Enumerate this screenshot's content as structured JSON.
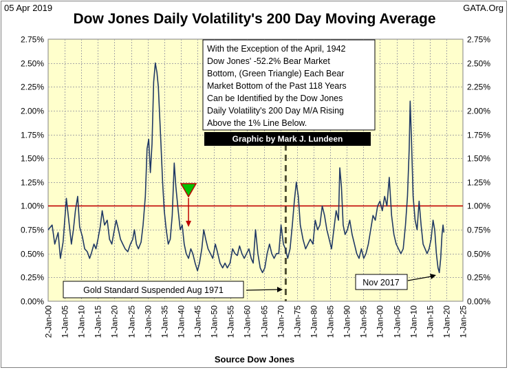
{
  "header": {
    "date": "05 Apr 2019",
    "source": "GATA.Org"
  },
  "chart_data": {
    "type": "line",
    "title": "Dow Jones Daily Volatility's 200 Day Moving Average",
    "xlabel": "Source Dow Jones",
    "ylabel": "",
    "ylim": [
      0,
      0.0275
    ],
    "xlim": [
      "1900-01-02",
      "2025-01-01"
    ],
    "y_ticks": [
      "0.00%",
      "0.25%",
      "0.50%",
      "0.75%",
      "1.00%",
      "1.25%",
      "1.50%",
      "1.75%",
      "2.00%",
      "2.25%",
      "2.50%",
      "2.75%"
    ],
    "x_ticks": [
      "2-Jan-00",
      "1-Jan-05",
      "1-Jan-10",
      "1-Jan-15",
      "1-Jan-20",
      "1-Jan-25",
      "1-Jan-30",
      "1-Jan-35",
      "1-Jan-40",
      "1-Jan-45",
      "1-Jan-50",
      "1-Jan-55",
      "1-Jan-60",
      "1-Jan-65",
      "1-Jan-70",
      "1-Jan-75",
      "1-Jan-80",
      "1-Jan-85",
      "1-Jan-90",
      "1-Jan-95",
      "1-Jan-00",
      "1-Jan-05",
      "1-Jan-10",
      "1-Jan-15",
      "1-Jan-20",
      "1-Jan-25"
    ],
    "grid": true,
    "plot_background": "#ffffcc",
    "line_color": "#1f3864",
    "reference_line": {
      "y": 0.01,
      "color": "#c00000"
    },
    "vertical_marker": {
      "x": 1971.6,
      "style": "dashed",
      "color": "#4d4d33"
    },
    "series": [
      {
        "name": "",
        "points": [
          [
            1900.0,
            0.0075
          ],
          [
            1901.2,
            0.008
          ],
          [
            1902.0,
            0.006
          ],
          [
            1903.0,
            0.0072
          ],
          [
            1903.7,
            0.0045
          ],
          [
            1904.5,
            0.0062
          ],
          [
            1905.0,
            0.0085
          ],
          [
            1905.5,
            0.0108
          ],
          [
            1906.3,
            0.0082
          ],
          [
            1907.0,
            0.006
          ],
          [
            1907.6,
            0.0075
          ],
          [
            1908.2,
            0.0095
          ],
          [
            1908.9,
            0.011
          ],
          [
            1909.5,
            0.0078
          ],
          [
            1910.3,
            0.0068
          ],
          [
            1911.0,
            0.0055
          ],
          [
            1911.8,
            0.0052
          ],
          [
            1912.5,
            0.0045
          ],
          [
            1913.0,
            0.005
          ],
          [
            1913.8,
            0.006
          ],
          [
            1914.4,
            0.0055
          ],
          [
            1915.0,
            0.0065
          ],
          [
            1915.7,
            0.0078
          ],
          [
            1916.3,
            0.0095
          ],
          [
            1917.0,
            0.008
          ],
          [
            1917.8,
            0.0085
          ],
          [
            1918.5,
            0.0065
          ],
          [
            1919.2,
            0.006
          ],
          [
            1919.8,
            0.0072
          ],
          [
            1920.5,
            0.0085
          ],
          [
            1921.0,
            0.0078
          ],
          [
            1921.8,
            0.0065
          ],
          [
            1922.5,
            0.006
          ],
          [
            1923.2,
            0.0055
          ],
          [
            1924.0,
            0.0052
          ],
          [
            1924.8,
            0.006
          ],
          [
            1925.5,
            0.0065
          ],
          [
            1926.0,
            0.0075
          ],
          [
            1926.6,
            0.006
          ],
          [
            1927.2,
            0.0055
          ],
          [
            1928.0,
            0.0062
          ],
          [
            1928.6,
            0.008
          ],
          [
            1929.3,
            0.011
          ],
          [
            1929.8,
            0.016
          ],
          [
            1930.3,
            0.017
          ],
          [
            1930.8,
            0.0135
          ],
          [
            1931.3,
            0.0165
          ],
          [
            1931.8,
            0.023
          ],
          [
            1932.3,
            0.025
          ],
          [
            1932.8,
            0.024
          ],
          [
            1933.2,
            0.0225
          ],
          [
            1933.6,
            0.0195
          ],
          [
            1934.0,
            0.0165
          ],
          [
            1934.5,
            0.0125
          ],
          [
            1935.0,
            0.0095
          ],
          [
            1935.6,
            0.0075
          ],
          [
            1936.2,
            0.006
          ],
          [
            1936.8,
            0.0065
          ],
          [
            1937.4,
            0.009
          ],
          [
            1938.0,
            0.0145
          ],
          [
            1938.5,
            0.012
          ],
          [
            1939.2,
            0.0095
          ],
          [
            1939.8,
            0.0075
          ],
          [
            1940.4,
            0.008
          ],
          [
            1941.0,
            0.006
          ],
          [
            1941.6,
            0.005
          ],
          [
            1942.3,
            0.0045
          ],
          [
            1943.0,
            0.0055
          ],
          [
            1943.6,
            0.005
          ],
          [
            1944.3,
            0.004
          ],
          [
            1945.0,
            0.0032
          ],
          [
            1945.6,
            0.004
          ],
          [
            1946.3,
            0.0055
          ],
          [
            1946.9,
            0.0075
          ],
          [
            1947.5,
            0.0065
          ],
          [
            1948.2,
            0.0055
          ],
          [
            1948.9,
            0.005
          ],
          [
            1949.6,
            0.0045
          ],
          [
            1950.4,
            0.006
          ],
          [
            1951.0,
            0.0052
          ],
          [
            1951.8,
            0.004
          ],
          [
            1952.6,
            0.0035
          ],
          [
            1953.3,
            0.004
          ],
          [
            1954.0,
            0.0035
          ],
          [
            1954.8,
            0.004
          ],
          [
            1955.6,
            0.0055
          ],
          [
            1956.3,
            0.005
          ],
          [
            1957.0,
            0.0048
          ],
          [
            1957.7,
            0.0058
          ],
          [
            1958.4,
            0.005
          ],
          [
            1959.1,
            0.0045
          ],
          [
            1959.8,
            0.005
          ],
          [
            1960.5,
            0.0055
          ],
          [
            1961.2,
            0.0045
          ],
          [
            1961.8,
            0.004
          ],
          [
            1962.5,
            0.0075
          ],
          [
            1963.2,
            0.005
          ],
          [
            1963.9,
            0.0035
          ],
          [
            1964.6,
            0.003
          ],
          [
            1965.3,
            0.0035
          ],
          [
            1966.0,
            0.005
          ],
          [
            1966.7,
            0.006
          ],
          [
            1967.4,
            0.005
          ],
          [
            1968.1,
            0.0045
          ],
          [
            1968.8,
            0.005
          ],
          [
            1969.5,
            0.005
          ],
          [
            1970.2,
            0.008
          ],
          [
            1970.9,
            0.006
          ],
          [
            1971.5,
            0.0055
          ],
          [
            1972.2,
            0.0045
          ],
          [
            1972.9,
            0.0055
          ],
          [
            1973.6,
            0.008
          ],
          [
            1974.2,
            0.0105
          ],
          [
            1974.8,
            0.0125
          ],
          [
            1975.4,
            0.011
          ],
          [
            1976.0,
            0.008
          ],
          [
            1976.8,
            0.0065
          ],
          [
            1977.6,
            0.0055
          ],
          [
            1978.3,
            0.006
          ],
          [
            1979.0,
            0.0065
          ],
          [
            1979.8,
            0.006
          ],
          [
            1980.5,
            0.0085
          ],
          [
            1981.2,
            0.0075
          ],
          [
            1981.9,
            0.008
          ],
          [
            1982.6,
            0.01
          ],
          [
            1983.3,
            0.009
          ],
          [
            1984.0,
            0.0075
          ],
          [
            1984.7,
            0.0065
          ],
          [
            1985.4,
            0.0055
          ],
          [
            1986.1,
            0.0075
          ],
          [
            1986.8,
            0.0095
          ],
          [
            1987.5,
            0.0085
          ],
          [
            1987.9,
            0.014
          ],
          [
            1988.4,
            0.012
          ],
          [
            1988.9,
            0.008
          ],
          [
            1989.5,
            0.007
          ],
          [
            1990.2,
            0.0075
          ],
          [
            1990.9,
            0.0085
          ],
          [
            1991.6,
            0.007
          ],
          [
            1992.3,
            0.006
          ],
          [
            1993.0,
            0.005
          ],
          [
            1993.7,
            0.0045
          ],
          [
            1994.4,
            0.0055
          ],
          [
            1995.1,
            0.0045
          ],
          [
            1995.8,
            0.005
          ],
          [
            1996.5,
            0.006
          ],
          [
            1997.2,
            0.0075
          ],
          [
            1997.9,
            0.009
          ],
          [
            1998.6,
            0.0085
          ],
          [
            1999.3,
            0.01
          ],
          [
            2000.0,
            0.0105
          ],
          [
            2000.7,
            0.0095
          ],
          [
            2001.4,
            0.011
          ],
          [
            2002.1,
            0.01
          ],
          [
            2002.8,
            0.013
          ],
          [
            2003.5,
            0.009
          ],
          [
            2004.2,
            0.007
          ],
          [
            2004.9,
            0.006
          ],
          [
            2005.6,
            0.0055
          ],
          [
            2006.3,
            0.005
          ],
          [
            2007.0,
            0.0055
          ],
          [
            2007.7,
            0.008
          ],
          [
            2008.3,
            0.011
          ],
          [
            2008.8,
            0.016
          ],
          [
            2009.1,
            0.021
          ],
          [
            2009.5,
            0.017
          ],
          [
            2010.0,
            0.011
          ],
          [
            2010.6,
            0.0085
          ],
          [
            2011.2,
            0.0075
          ],
          [
            2011.8,
            0.0105
          ],
          [
            2012.4,
            0.008
          ],
          [
            2013.0,
            0.006
          ],
          [
            2013.6,
            0.0055
          ],
          [
            2014.2,
            0.005
          ],
          [
            2014.8,
            0.0055
          ],
          [
            2015.4,
            0.0065
          ],
          [
            2016.0,
            0.0085
          ],
          [
            2016.5,
            0.0075
          ],
          [
            2017.0,
            0.005
          ],
          [
            2017.5,
            0.0035
          ],
          [
            2017.9,
            0.003
          ],
          [
            2018.3,
            0.0045
          ],
          [
            2018.7,
            0.007
          ],
          [
            2019.0,
            0.008
          ],
          [
            2019.26,
            0.0072
          ]
        ]
      }
    ],
    "annotations": [
      {
        "id": "top-note",
        "lines": [
          "With the Exception of the April, 1942",
          "Dow Jones' -52.2% Bear Market",
          "Bottom, (Green Triangle) Each Bear",
          "Market Bottom of the Past 118 Years",
          "Can be Identified by the Dow Jones",
          "Daily Volatility's 200 Day M/A Rising",
          "Above the 1% Line Below."
        ]
      },
      {
        "id": "credit",
        "text": "Graphic by Mark J. Lundeen"
      },
      {
        "id": "gold-note",
        "text": "Gold Standard Suspended Aug 1971"
      },
      {
        "id": "nov-note",
        "text": "Nov 2017"
      }
    ],
    "markers": [
      {
        "type": "triangle-down",
        "x": 1942.3,
        "color": "#00c000"
      }
    ]
  }
}
